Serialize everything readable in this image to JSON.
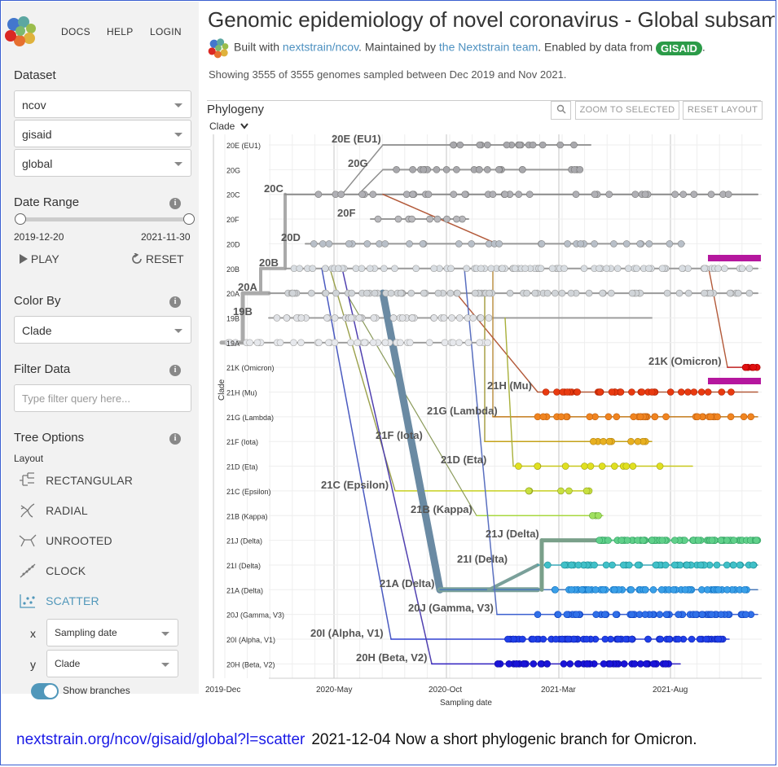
{
  "nav": {
    "docs": "DOCS",
    "help": "HELP",
    "login": "LOGIN"
  },
  "sidebar": {
    "dataset_heading": "Dataset",
    "dataset_selects": [
      "ncov",
      "gisaid",
      "global"
    ],
    "date_range_heading": "Date Range",
    "date_start": "2019-12-20",
    "date_end": "2021-11-30",
    "play_label": "PLAY",
    "reset_label": "RESET",
    "color_by_heading": "Color By",
    "color_by_value": "Clade",
    "filter_heading": "Filter Data",
    "filter_placeholder": "Type filter query here...",
    "tree_options_heading": "Tree Options",
    "layout_label": "Layout",
    "layouts": [
      "RECTANGULAR",
      "RADIAL",
      "UNROOTED",
      "CLOCK",
      "SCATTER"
    ],
    "x_label": "x",
    "x_value": "Sampling date",
    "y_label": "y",
    "y_value": "Clade",
    "show_branches_label": "Show branches"
  },
  "header": {
    "title": "Genomic epidemiology of novel coronavirus - Global subsampling",
    "built_with": "Built with",
    "built_link": "nextstrain/ncov",
    "maintained_by": ". Maintained by",
    "team_link": "the Nextstrain team",
    "enabled_by": ". Enabled by data from",
    "gisaid": "GISAID",
    "period": ".",
    "showing": "Showing 3555 of 3555 genomes sampled between Dec 2019 and Nov 2021."
  },
  "panel": {
    "title": "Phylogeny",
    "zoom_selected": "ZOOM TO SELECTED",
    "reset_layout": "RESET LAYOUT",
    "clade_selector": "Clade"
  },
  "colors": {
    "accent": "#5097ba",
    "omicron": "#d81b1b",
    "highlight": "#b5179e",
    "gray": "#999999"
  },
  "chart_data": {
    "type": "scatter",
    "xlabel": "Sampling date",
    "ylabel": "Clade",
    "x_ticks": [
      "2019-Dec",
      "2020-May",
      "2020-Oct",
      "2021-Mar",
      "2021-Aug"
    ],
    "y_categories": [
      "20E (EU1)",
      "20G",
      "20C",
      "20F",
      "20D",
      "20B",
      "20A",
      "19B",
      "19A",
      "21K (Omicron)",
      "21H (Mu)",
      "21G (Lambda)",
      "21F (Iota)",
      "21D (Eta)",
      "21C (Epsilon)",
      "21B (Kappa)",
      "21J (Delta)",
      "21I (Delta)",
      "21A (Delta)",
      "20J (Gamma, V3)",
      "20I (Alpha, V1)",
      "20H (Beta, V2)"
    ],
    "tick_labels": [
      "20E (EU1)",
      "20G",
      "20C",
      "20F",
      "20D",
      "20B",
      "20A",
      "19B",
      "19A",
      "21K (Omicron)",
      "21H (Mu)",
      "21G (Lambda)",
      "21F (Iota)",
      "21D (Eta)",
      "21C (Epsilon)",
      "21B (Kappa)",
      "21J (Delta)",
      "21I (Delta)",
      "21A (Delta)",
      "20J (Gamma, V3)",
      "20I (Alpha, V1)",
      "20H (Beta, V2)"
    ],
    "clade_annotations": [
      "20E (EU1)",
      "20G",
      "20C",
      "20F",
      "20D",
      "20B",
      "20A",
      "19B",
      "21K (Omicron)",
      "21H (Mu)",
      "21G (Lambda)",
      "21F (Iota)",
      "21D (Eta)",
      "21C (Epsilon)",
      "21B (Kappa)",
      "21J (Delta)",
      "21I (Delta)",
      "21A (Delta)",
      "20J (Gamma, V3)",
      "20I (Alpha, V1)",
      "20H (Beta, V2)"
    ]
  },
  "footer": {
    "url": "nextstrain.org/ncov/gisaid/global?l=scatter",
    "note": "2021-12-04 Now a short phylogenic branch for Omicron."
  }
}
